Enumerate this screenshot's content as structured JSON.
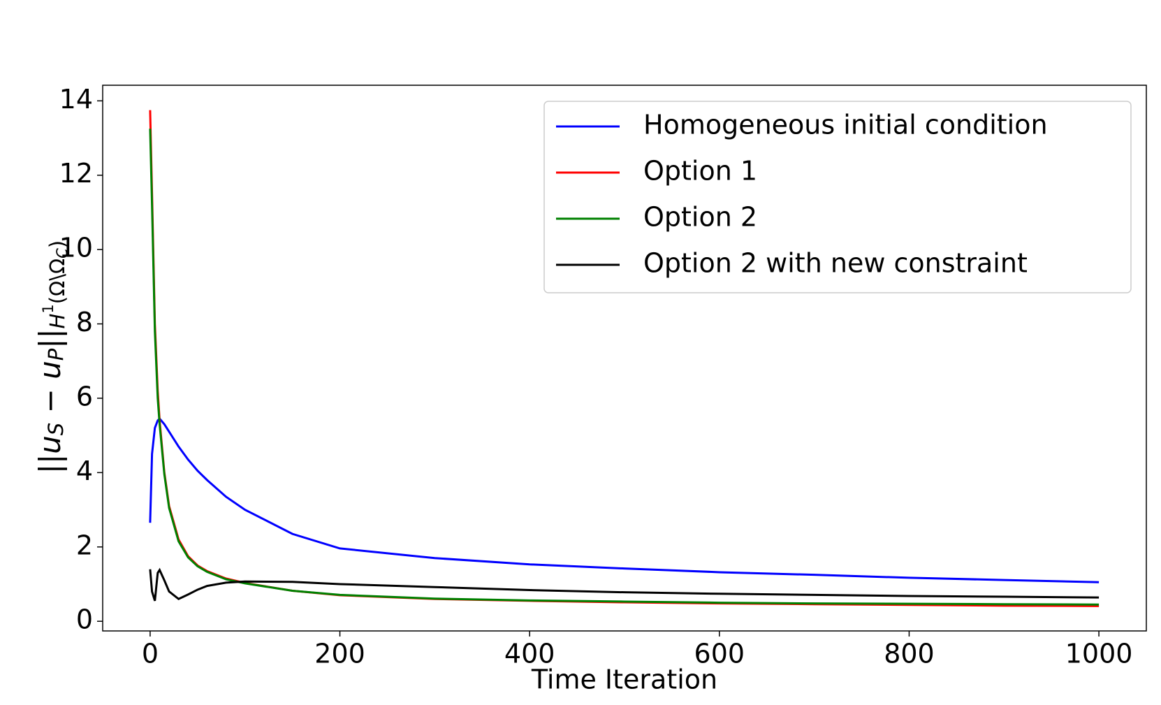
{
  "chart_data": {
    "type": "line",
    "xlabel": "Time Iteration",
    "ylabel": [
      "||",
      "u",
      "S",
      " − ",
      "u",
      "P",
      "||",
      "H",
      "1",
      "(Ω\\Ω",
      "C",
      ")"
    ],
    "x": [
      0,
      2,
      5,
      8,
      10,
      15,
      20,
      30,
      40,
      50,
      60,
      80,
      100,
      150,
      200,
      300,
      400,
      500,
      600,
      700,
      800,
      900,
      1000
    ],
    "series": [
      {
        "name": "Homogeneous initial condition",
        "color": "#0000ff",
        "values": [
          2.65,
          4.5,
          5.2,
          5.4,
          5.45,
          5.3,
          5.1,
          4.7,
          4.35,
          4.05,
          3.8,
          3.35,
          3.0,
          2.35,
          1.96,
          1.7,
          1.53,
          1.42,
          1.32,
          1.25,
          1.17,
          1.11,
          1.05
        ]
      },
      {
        "name": "Option 1",
        "color": "#ff0000",
        "values": [
          13.75,
          11.5,
          8.0,
          6.2,
          5.4,
          4.0,
          3.1,
          2.2,
          1.75,
          1.5,
          1.35,
          1.15,
          1.03,
          0.82,
          0.7,
          0.6,
          0.55,
          0.51,
          0.48,
          0.46,
          0.44,
          0.42,
          0.41
        ]
      },
      {
        "name": "Option 2",
        "color": "#008000",
        "values": [
          13.25,
          11.2,
          7.8,
          6.0,
          5.3,
          3.95,
          3.05,
          2.15,
          1.72,
          1.48,
          1.33,
          1.13,
          1.02,
          0.82,
          0.71,
          0.61,
          0.56,
          0.53,
          0.5,
          0.48,
          0.47,
          0.46,
          0.45
        ]
      },
      {
        "name": "Option 2 with new constraint",
        "color": "#000000",
        "values": [
          1.4,
          0.8,
          0.55,
          1.3,
          1.38,
          1.1,
          0.8,
          0.6,
          0.72,
          0.85,
          0.95,
          1.04,
          1.07,
          1.06,
          1.0,
          0.92,
          0.84,
          0.78,
          0.74,
          0.71,
          0.68,
          0.66,
          0.64
        ]
      }
    ],
    "xlim": [
      -50,
      1050
    ],
    "xticks": [
      0,
      200,
      400,
      600,
      800,
      1000
    ],
    "ylim": [
      -0.26,
      14.42
    ],
    "yticks": [
      0,
      2,
      4,
      6,
      8,
      10,
      12,
      14
    ],
    "legend": "upper right"
  }
}
